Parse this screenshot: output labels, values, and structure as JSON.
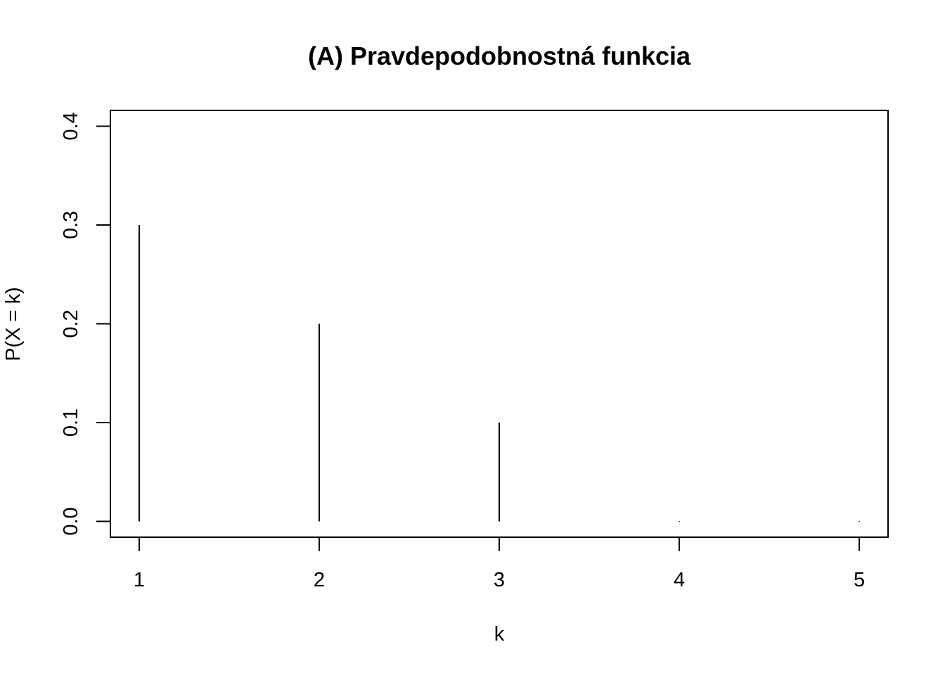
{
  "chart_data": {
    "type": "bar",
    "style": "stem",
    "title": "(A) Pravdepodobnostná funkcia",
    "xlabel": "k",
    "ylabel": "P(X = k)",
    "x": [
      1,
      2,
      3,
      4,
      5
    ],
    "values": [
      0.3,
      0.2,
      0.1,
      0,
      0
    ],
    "xlim": [
      0.84,
      5.16
    ],
    "ylim": [
      -0.016,
      0.416
    ],
    "x_ticks": [
      1,
      2,
      3,
      4,
      5
    ],
    "x_tick_labels": [
      "1",
      "2",
      "3",
      "4",
      "5"
    ],
    "y_ticks": [
      0,
      0.1,
      0.2,
      0.3,
      0.4
    ],
    "y_tick_labels": [
      "0.0",
      "0.1",
      "0.2",
      "0.3",
      "0.4"
    ],
    "grid": false,
    "legend": "none",
    "color": "#000000"
  }
}
